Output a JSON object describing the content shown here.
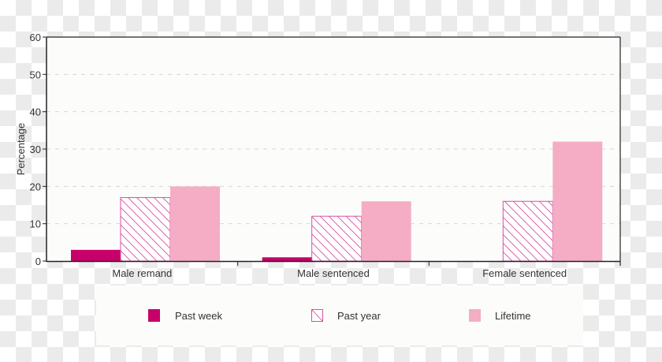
{
  "chart_data": {
    "type": "bar",
    "title": "",
    "xlabel": "",
    "ylabel": "Percentage",
    "ylim": [
      0,
      60
    ],
    "yticks": [
      0,
      10,
      20,
      30,
      40,
      50,
      60
    ],
    "grid": "horizontal dashed",
    "legend_position": "bottom",
    "categories": [
      "Male remand",
      "Male sentenced",
      "Female sentenced"
    ],
    "series": [
      {
        "name": "Past week",
        "values": [
          3,
          1,
          0
        ],
        "color": "#c8006a",
        "fill": "solid"
      },
      {
        "name": "Past year",
        "values": [
          17,
          12,
          16
        ],
        "color": "#d94fa0",
        "fill": "hatched"
      },
      {
        "name": "Lifetime",
        "values": [
          20,
          16,
          32
        ],
        "color": "#f4adc5",
        "fill": "solid"
      }
    ]
  },
  "legend": {
    "items": [
      {
        "label": "Past week"
      },
      {
        "label": "Past year"
      },
      {
        "label": "Lifetime"
      }
    ]
  }
}
